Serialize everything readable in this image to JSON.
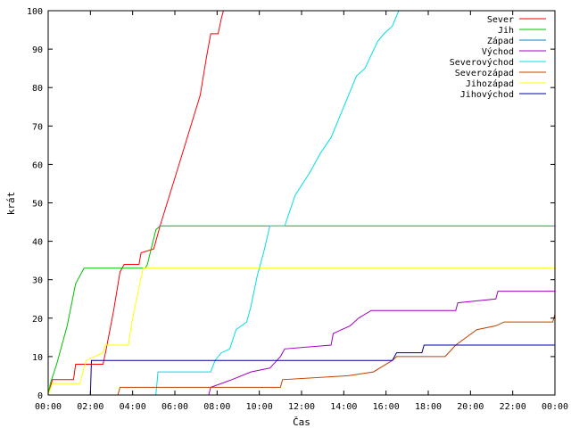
{
  "chart_data": {
    "type": "line",
    "xlabel": "Čas",
    "ylabel": "krát",
    "xlim": [
      0,
      24
    ],
    "ylim": [
      0,
      100
    ],
    "grid": false,
    "legend_position": "top-right",
    "x_ticks": [
      {
        "value": 0,
        "label": "00:00"
      },
      {
        "value": 2,
        "label": "02:00"
      },
      {
        "value": 4,
        "label": "04:00"
      },
      {
        "value": 6,
        "label": "06:00"
      },
      {
        "value": 8,
        "label": "08:00"
      },
      {
        "value": 10,
        "label": "10:00"
      },
      {
        "value": 12,
        "label": "12:00"
      },
      {
        "value": 14,
        "label": "14:00"
      },
      {
        "value": 16,
        "label": "16:00"
      },
      {
        "value": 18,
        "label": "18:00"
      },
      {
        "value": 20,
        "label": "20:00"
      },
      {
        "value": 22,
        "label": "22:00"
      },
      {
        "value": 24,
        "label": "00:00"
      }
    ],
    "y_ticks": [
      {
        "value": 0,
        "label": "0"
      },
      {
        "value": 10,
        "label": "10"
      },
      {
        "value": 20,
        "label": "20"
      },
      {
        "value": 30,
        "label": "30"
      },
      {
        "value": 40,
        "label": "40"
      },
      {
        "value": 50,
        "label": "50"
      },
      {
        "value": 60,
        "label": "60"
      },
      {
        "value": 70,
        "label": "70"
      },
      {
        "value": 80,
        "label": "80"
      },
      {
        "value": 90,
        "label": "90"
      },
      {
        "value": 100,
        "label": "100"
      }
    ],
    "series": [
      {
        "name": "Sever",
        "color": "#ff0000",
        "points": [
          [
            0,
            0
          ],
          [
            0.1,
            2
          ],
          [
            0.2,
            4
          ],
          [
            1.2,
            4
          ],
          [
            1.3,
            8
          ],
          [
            2.6,
            8
          ],
          [
            2.75,
            12
          ],
          [
            3.1,
            22
          ],
          [
            3.4,
            32
          ],
          [
            3.6,
            34
          ],
          [
            4.3,
            34
          ],
          [
            4.4,
            37
          ],
          [
            5.0,
            38
          ],
          [
            5.3,
            44
          ],
          [
            6.2,
            60
          ],
          [
            7.2,
            78
          ],
          [
            7.5,
            88
          ],
          [
            7.7,
            94
          ],
          [
            8.05,
            94
          ],
          [
            8.2,
            98
          ],
          [
            8.3,
            100
          ]
        ]
      },
      {
        "name": "Jih",
        "color": "#00c000",
        "points": [
          [
            0,
            0
          ],
          [
            0.1,
            3
          ],
          [
            0.4,
            8
          ],
          [
            0.9,
            18
          ],
          [
            1.3,
            29
          ],
          [
            1.7,
            33
          ],
          [
            4.6,
            33
          ],
          [
            4.7,
            34
          ],
          [
            5.1,
            43
          ],
          [
            5.3,
            44
          ],
          [
            24,
            44
          ]
        ]
      },
      {
        "name": "Západ",
        "color": "#0080c0",
        "points": [
          [
            0,
            0
          ],
          [
            24,
            0
          ]
        ]
      },
      {
        "name": "Východ",
        "color": "#a000c0",
        "points": [
          [
            0,
            0
          ],
          [
            7.6,
            0
          ],
          [
            7.7,
            2
          ],
          [
            8.7,
            4
          ],
          [
            9.6,
            6
          ],
          [
            10.5,
            7
          ],
          [
            11.0,
            10
          ],
          [
            11.2,
            12
          ],
          [
            13.4,
            13
          ],
          [
            13.5,
            16
          ],
          [
            14.3,
            18
          ],
          [
            14.7,
            20
          ],
          [
            15.3,
            22
          ],
          [
            19.3,
            22
          ],
          [
            19.4,
            24
          ],
          [
            21.2,
            25
          ],
          [
            21.3,
            27
          ],
          [
            24,
            27
          ]
        ]
      },
      {
        "name": "Severovýchod",
        "color": "#00e0e0",
        "points": [
          [
            0,
            0
          ],
          [
            5.1,
            0
          ],
          [
            5.2,
            6
          ],
          [
            7.7,
            6
          ],
          [
            7.9,
            9
          ],
          [
            8.2,
            11
          ],
          [
            8.6,
            12
          ],
          [
            8.9,
            17
          ],
          [
            9.4,
            19
          ],
          [
            9.6,
            23
          ],
          [
            9.9,
            31
          ],
          [
            10.2,
            37
          ],
          [
            10.5,
            44
          ],
          [
            11.2,
            44
          ],
          [
            11.7,
            52
          ],
          [
            12.4,
            58
          ],
          [
            12.9,
            63
          ],
          [
            13.4,
            67
          ],
          [
            14.0,
            75
          ],
          [
            14.6,
            83
          ],
          [
            15.0,
            85
          ],
          [
            15.6,
            92
          ],
          [
            15.9,
            94
          ],
          [
            16.3,
            96
          ],
          [
            16.6,
            100
          ]
        ]
      },
      {
        "name": "Severozápad",
        "color": "#c04000",
        "points": [
          [
            0,
            0
          ],
          [
            3.3,
            0
          ],
          [
            3.4,
            2
          ],
          [
            11.0,
            2
          ],
          [
            11.1,
            4
          ],
          [
            14.2,
            5
          ],
          [
            15.4,
            6
          ],
          [
            16.3,
            9
          ],
          [
            16.5,
            10
          ],
          [
            18.8,
            10
          ],
          [
            19.3,
            13
          ],
          [
            19.8,
            15
          ],
          [
            20.3,
            17
          ],
          [
            21.2,
            18
          ],
          [
            21.6,
            19
          ],
          [
            23.9,
            19
          ],
          [
            24,
            21
          ]
        ]
      },
      {
        "name": "Jihozápad",
        "color": "#ffff00",
        "points": [
          [
            0,
            0
          ],
          [
            0.2,
            3
          ],
          [
            1.5,
            3
          ],
          [
            1.7,
            7
          ],
          [
            1.8,
            9
          ],
          [
            2.6,
            11
          ],
          [
            2.7,
            13
          ],
          [
            3.8,
            13
          ],
          [
            4.0,
            20
          ],
          [
            4.3,
            28
          ],
          [
            4.5,
            33
          ],
          [
            24,
            33
          ]
        ]
      },
      {
        "name": "Jihovýchod",
        "color": "#0000a0",
        "points": [
          [
            0,
            0
          ],
          [
            2.0,
            0
          ],
          [
            2.05,
            9
          ],
          [
            16.3,
            9
          ],
          [
            16.5,
            11
          ],
          [
            17.7,
            11
          ],
          [
            17.8,
            13
          ],
          [
            24,
            13
          ]
        ]
      }
    ]
  }
}
